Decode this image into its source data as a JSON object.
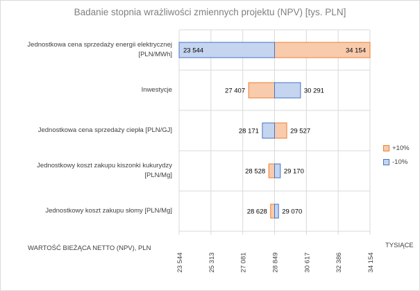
{
  "chart_data": {
    "type": "bar",
    "orientation": "horizontal",
    "title": "Badanie stopnia  wrażliwości zmiennych projektu (NPV) [tys. PLN]",
    "xlabel": "WARTOŚĆ BIEŻĄCA NETTO (NPV),  PLN",
    "unit_label": "TYSIĄCE",
    "base_value": 28849,
    "xlim": [
      23544,
      34154
    ],
    "x_ticks": [
      23544,
      25313,
      27081,
      28849,
      30617,
      32386,
      34154
    ],
    "x_tick_labels": [
      "23 544",
      "25 313",
      "27 081",
      "28 849",
      "30 617",
      "32 386",
      "34 154"
    ],
    "categories": [
      [
        "Jednostkowa cena sprzedaży energii elektrycznej",
        "[PLN/MWh]"
      ],
      [
        "Inwestycje"
      ],
      [
        "Jednostkowa cena sprzedaży ciepła [PLN/GJ]"
      ],
      [
        "Jednostkowy koszt zakupu kiszonki kukurydzy",
        "[PLN/Mg]"
      ],
      [
        "Jednostkowy koszt zakupu słomy [PLN/Mg]"
      ]
    ],
    "series": [
      {
        "name": "+10%",
        "color": "#f4b183",
        "values": [
          34154,
          27407,
          29527,
          28528,
          28628
        ],
        "labels": [
          "34 154",
          "27 407",
          "29 527",
          "28 528",
          "28 628"
        ]
      },
      {
        "name": "-10%",
        "color": "#b4c7e7",
        "values": [
          23544,
          30291,
          28171,
          29170,
          29070
        ],
        "labels": [
          "23 544",
          "30 291",
          "28 171",
          "29 170",
          "29 070"
        ]
      }
    ],
    "legend_position": "right",
    "grid": true
  },
  "colors": {
    "plus_fill": "#f8cbad",
    "plus_edge": "#ed7d31",
    "minus_fill": "#c5d5f0",
    "minus_edge": "#4472c4"
  }
}
